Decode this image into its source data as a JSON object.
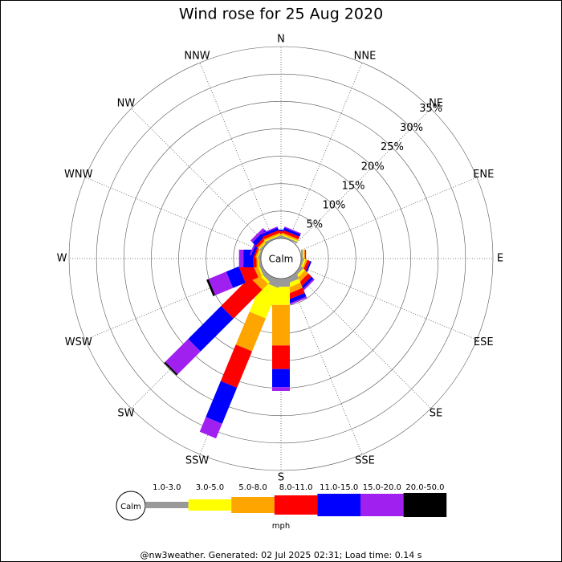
{
  "chart_data": {
    "type": "windrose",
    "title": "Wind rose for 25 Aug 2020",
    "categories": [
      "N",
      "NNE",
      "NE",
      "ENE",
      "E",
      "ESE",
      "SE",
      "SSE",
      "S",
      "SSW",
      "SW",
      "WSW",
      "W",
      "WNW",
      "NW",
      "NNW"
    ],
    "calm_label": "Calm",
    "unit_label": "mph",
    "footer": "@nw3weather. Generated: 02 Jul 2025 02:31; Load time: 0.14 s",
    "ylim": [
      0,
      35
    ],
    "yticks": [
      {
        "value": 5,
        "label": "5%"
      },
      {
        "value": 10,
        "label": "10%"
      },
      {
        "value": 15,
        "label": "15%"
      },
      {
        "value": 20,
        "label": "20%"
      },
      {
        "value": 25,
        "label": "25%"
      },
      {
        "value": 30,
        "label": "30%"
      },
      {
        "value": 35,
        "label": "35%"
      }
    ],
    "series": [
      {
        "name": "1.0-3.0",
        "color": "#999999",
        "values": [
          0.3,
          0.3,
          0,
          0,
          0.3,
          0.3,
          0.5,
          1.0,
          1.5,
          1.5,
          0.8,
          0.5,
          0.3,
          0.3,
          0.3,
          0.3
        ]
      },
      {
        "name": "3.0-5.0",
        "color": "#ffff00",
        "values": [
          0.2,
          0.2,
          0,
          0,
          0.2,
          0.3,
          0.5,
          0.8,
          3.3,
          6.0,
          0.5,
          0.3,
          0.2,
          0.2,
          0.2,
          0.2
        ]
      },
      {
        "name": "5.0-8.0",
        "color": "#ffa500",
        "values": [
          0.3,
          0.3,
          0,
          0,
          0.2,
          0.3,
          0.8,
          1.0,
          7.4,
          6.5,
          1.5,
          0.7,
          0.3,
          0.3,
          0.3,
          0.3
        ]
      },
      {
        "name": "8.0-11.0",
        "color": "#ff0000",
        "values": [
          0.5,
          0.5,
          0,
          0,
          0.2,
          0.5,
          0.8,
          1.0,
          4.3,
          7.2,
          7.4,
          2.5,
          0.6,
          0.3,
          0.5,
          0.5
        ]
      },
      {
        "name": "11.0-15.0",
        "color": "#0000ff",
        "values": [
          0.3,
          0.5,
          0,
          0,
          0,
          0.3,
          0.5,
          0.7,
          3.3,
          7.1,
          8.5,
          2.5,
          1.8,
          0.5,
          0.8,
          0.5
        ]
      },
      {
        "name": "15.0-20.0",
        "color": "#a020f0",
        "values": [
          0,
          0.2,
          0,
          0,
          0,
          0,
          0.3,
          0.3,
          0.7,
          2.9,
          5.9,
          3.5,
          0.8,
          0.3,
          0.5,
          0.2
        ]
      },
      {
        "name": "20.0-50.0",
        "color": "#000000",
        "values": [
          0,
          0,
          0,
          0,
          0,
          0,
          0,
          0,
          0,
          0,
          0.3,
          0.4,
          0,
          0,
          0,
          0
        ]
      }
    ]
  }
}
